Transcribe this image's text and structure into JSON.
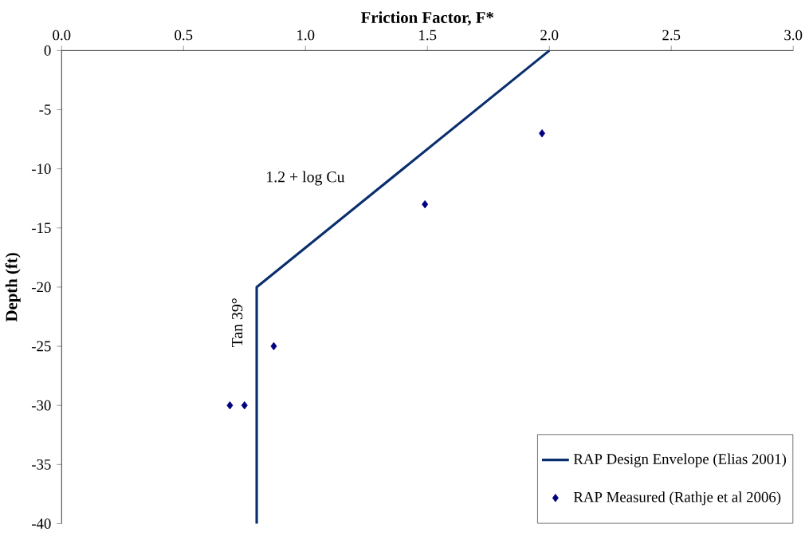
{
  "chart_data": {
    "type": "line",
    "xlabel": "Friction Factor, F*",
    "ylabel": "Depth (ft)",
    "xlim": [
      0,
      3
    ],
    "ylim": [
      -40,
      0
    ],
    "xticks": [
      {
        "value": 0,
        "label": "0.0"
      },
      {
        "value": 0.5,
        "label": "0.5"
      },
      {
        "value": 1,
        "label": "1.0"
      },
      {
        "value": 1.5,
        "label": "1.5"
      },
      {
        "value": 2,
        "label": "2.0"
      },
      {
        "value": 2.5,
        "label": "2.5"
      },
      {
        "value": 3,
        "label": "3.0"
      }
    ],
    "yticks": [
      0,
      -5,
      -10,
      -15,
      -20,
      -25,
      -30,
      -35,
      -40
    ],
    "series": [
      {
        "name": "RAP Design Envelope (Elias 2001)",
        "color": "#0a2f6e",
        "x": [
          2.0,
          0.8,
          0.8
        ],
        "values": [
          0,
          -20,
          -40
        ],
        "marker": "none"
      },
      {
        "name": "RAP Measured (Rathje et al 2006)",
        "type": "scatter",
        "color": "#000080",
        "x": [
          1.97,
          1.49,
          0.87,
          0.69,
          0.75
        ],
        "values": [
          -7,
          -13,
          -25,
          -30,
          -30
        ],
        "marker": "diamond"
      }
    ],
    "annotations": [
      "1.2 + log Cu",
      "Tan 39°"
    ],
    "legend": "bottom right",
    "grid": false
  }
}
